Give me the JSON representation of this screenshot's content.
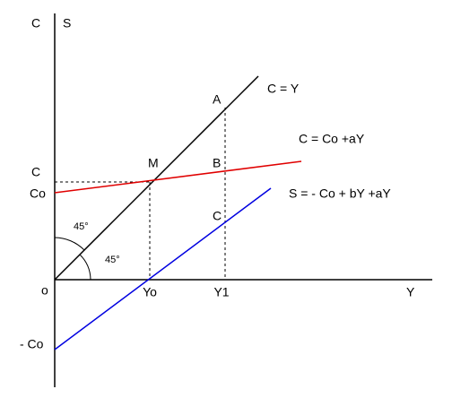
{
  "axes": {
    "vertical_labels": [
      "C",
      "S"
    ],
    "origin": "o",
    "horizontal": "Y"
  },
  "x_markers": [
    "Yo",
    "Y1"
  ],
  "y_markers": [
    "C",
    "Co",
    "- Co"
  ],
  "lines": [
    {
      "label": "C = Y"
    },
    {
      "label": "C = Co +aY"
    },
    {
      "label": "S = - Co + bY +aY"
    }
  ],
  "points": [
    "A",
    "B",
    "C",
    "M"
  ],
  "angles": [
    "45°",
    "45°"
  ]
}
